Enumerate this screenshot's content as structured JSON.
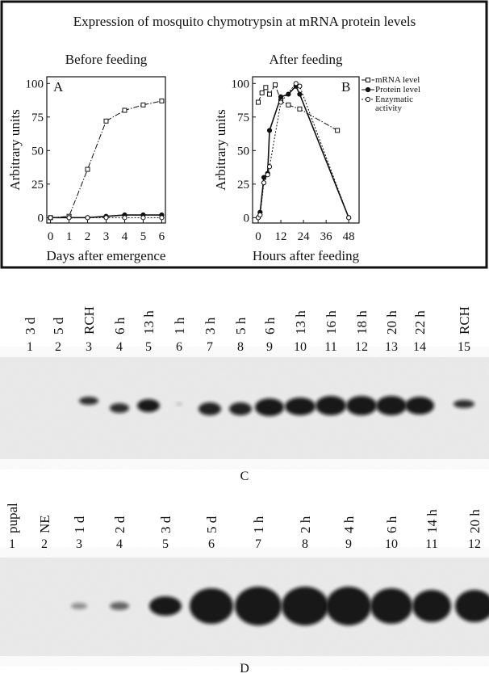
{
  "title": "Expression of mosquito chymotrypsin at mRNA protein levels",
  "chart_data": [
    {
      "type": "line",
      "panel": "A",
      "subtitle": "Before feeding",
      "ylabel": "Arbitrary units",
      "xlabel": "Days after emergence",
      "xlim": [
        -0.2,
        6.2
      ],
      "xticks": [
        0,
        1,
        2,
        3,
        4,
        5,
        6
      ],
      "ylim": [
        -4,
        105
      ],
      "yticks": [
        0,
        25,
        50,
        75,
        100
      ],
      "series": [
        {
          "marker": "square",
          "line_style": "dash-dot",
          "color": "#111",
          "x": [
            0,
            1,
            2,
            3,
            4,
            5,
            6
          ],
          "values": [
            0,
            1,
            36,
            72,
            80,
            84,
            87
          ]
        },
        {
          "marker": "filled-circle",
          "line_style": "solid",
          "color": "#111",
          "x": [
            0,
            1,
            2,
            3,
            4,
            5,
            6
          ],
          "values": [
            0,
            0,
            0,
            1,
            2,
            2,
            2
          ]
        },
        {
          "marker": "open-circle",
          "line_style": "dotted",
          "color": "#111",
          "x": [
            0,
            1,
            2,
            3,
            4,
            5,
            6
          ],
          "values": [
            0,
            0,
            0,
            0,
            0,
            0,
            0
          ]
        }
      ]
    },
    {
      "type": "line",
      "panel": "B",
      "subtitle": "After feeding",
      "ylabel": "Arbitrary units",
      "xlabel": "Hours after feeding",
      "xlim": [
        -3,
        53.5
      ],
      "xticks": [
        0,
        12,
        24,
        36,
        48
      ],
      "ylim": [
        -4,
        105
      ],
      "yticks": [
        0,
        25,
        50,
        75,
        100
      ],
      "series": [
        {
          "name": "mRNA level",
          "marker": "square",
          "line_style": "dash-dot",
          "color": "#111",
          "x": [
            0,
            2,
            4,
            6,
            9,
            12,
            16,
            22,
            42
          ],
          "values": [
            86,
            93,
            97,
            92,
            99,
            87,
            84,
            81,
            65
          ]
        },
        {
          "name": "Protein level",
          "marker": "filled-circle",
          "line_style": "solid",
          "color": "#111",
          "x": [
            0,
            1,
            3,
            5,
            6,
            12,
            16,
            20,
            22,
            48
          ],
          "values": [
            0,
            4,
            30,
            33,
            65,
            90,
            92,
            98,
            92,
            0
          ]
        },
        {
          "name": "Enzymatic activity",
          "marker": "open-circle",
          "line_style": "dotted",
          "color": "#111",
          "x": [
            0,
            1,
            3,
            5,
            6,
            12,
            20,
            22,
            48
          ],
          "values": [
            0,
            2,
            26,
            32,
            38,
            86,
            100,
            98,
            0
          ]
        }
      ]
    }
  ],
  "blots": [
    {
      "label": "C",
      "lanes": [
        {
          "label": "3 d",
          "number": 1
        },
        {
          "label": "5 d",
          "number": 2
        },
        {
          "label": "RCH",
          "number": 3
        },
        {
          "label": "6 h",
          "number": 4
        },
        {
          "label": "13 h",
          "number": 5
        },
        {
          "label": "1 h",
          "number": 6
        },
        {
          "label": "3 h",
          "number": 7
        },
        {
          "label": "5 h",
          "number": 8
        },
        {
          "label": "6 h",
          "number": 9
        },
        {
          "label": "13 h",
          "number": 10
        },
        {
          "label": "16 h",
          "number": 11
        },
        {
          "label": "18 h",
          "number": 12
        },
        {
          "label": "20 h",
          "number": 13
        },
        {
          "label": "22 h",
          "number": 14
        },
        {
          "label": "RCH",
          "number": 15
        }
      ]
    },
    {
      "label": "D",
      "lanes": [
        {
          "label": "pupal",
          "number": 1
        },
        {
          "label": "NE",
          "number": 2
        },
        {
          "label": "1 d",
          "number": 3
        },
        {
          "label": "2 d",
          "number": 4
        },
        {
          "label": "3 d",
          "number": 5
        },
        {
          "label": "5 d",
          "number": 6
        },
        {
          "label": "1 h",
          "number": 7
        },
        {
          "label": "2 h",
          "number": 8
        },
        {
          "label": "4 h",
          "number": 9
        },
        {
          "label": "6 h",
          "number": 10
        },
        {
          "label": "14 h",
          "number": 11
        },
        {
          "label": "20 h",
          "number": 12
        }
      ]
    }
  ]
}
